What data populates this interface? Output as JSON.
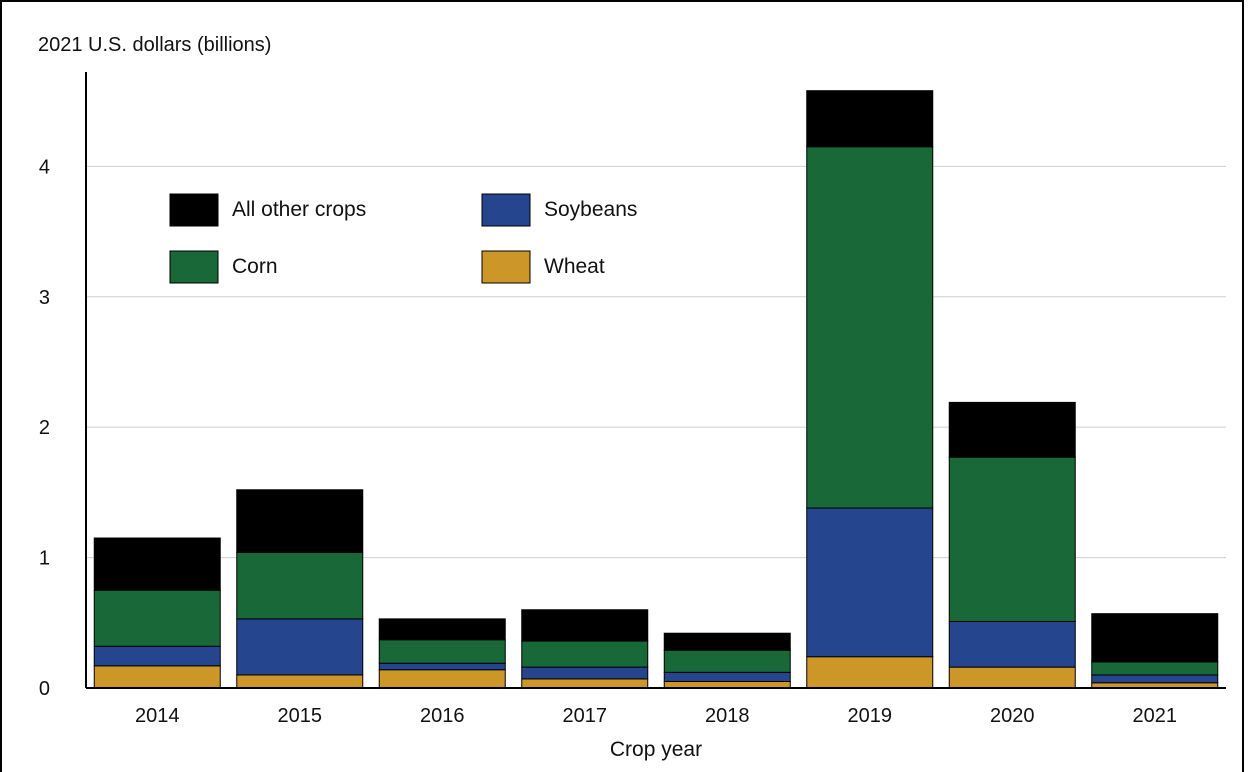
{
  "chart_data": {
    "type": "bar",
    "stacked": true,
    "title": "",
    "ylabel": "2021 U.S. dollars (billions)",
    "xlabel": "Crop year",
    "ylim": [
      0,
      4.8
    ],
    "yticks": [
      0,
      1,
      2,
      3,
      4
    ],
    "grid": true,
    "legend_position": "top-left",
    "categories": [
      "2014",
      "2015",
      "2016",
      "2017",
      "2018",
      "2019",
      "2020",
      "2021"
    ],
    "series": [
      {
        "name": "Wheat",
        "color": "#cc9629",
        "values": [
          0.17,
          0.1,
          0.14,
          0.07,
          0.05,
          0.24,
          0.16,
          0.04
        ]
      },
      {
        "name": "Soybeans",
        "color": "#26458f",
        "values": [
          0.15,
          0.43,
          0.05,
          0.09,
          0.07,
          1.14,
          0.35,
          0.06
        ]
      },
      {
        "name": "Corn",
        "color": "#186838",
        "values": [
          0.43,
          0.51,
          0.18,
          0.2,
          0.17,
          2.77,
          1.26,
          0.1
        ]
      },
      {
        "name": "All other crops",
        "color": "#000000",
        "values": [
          0.4,
          0.48,
          0.16,
          0.24,
          0.13,
          0.43,
          0.42,
          0.37
        ]
      }
    ],
    "legend_order": [
      "All other crops",
      "Soybeans",
      "Corn",
      "Wheat"
    ]
  }
}
